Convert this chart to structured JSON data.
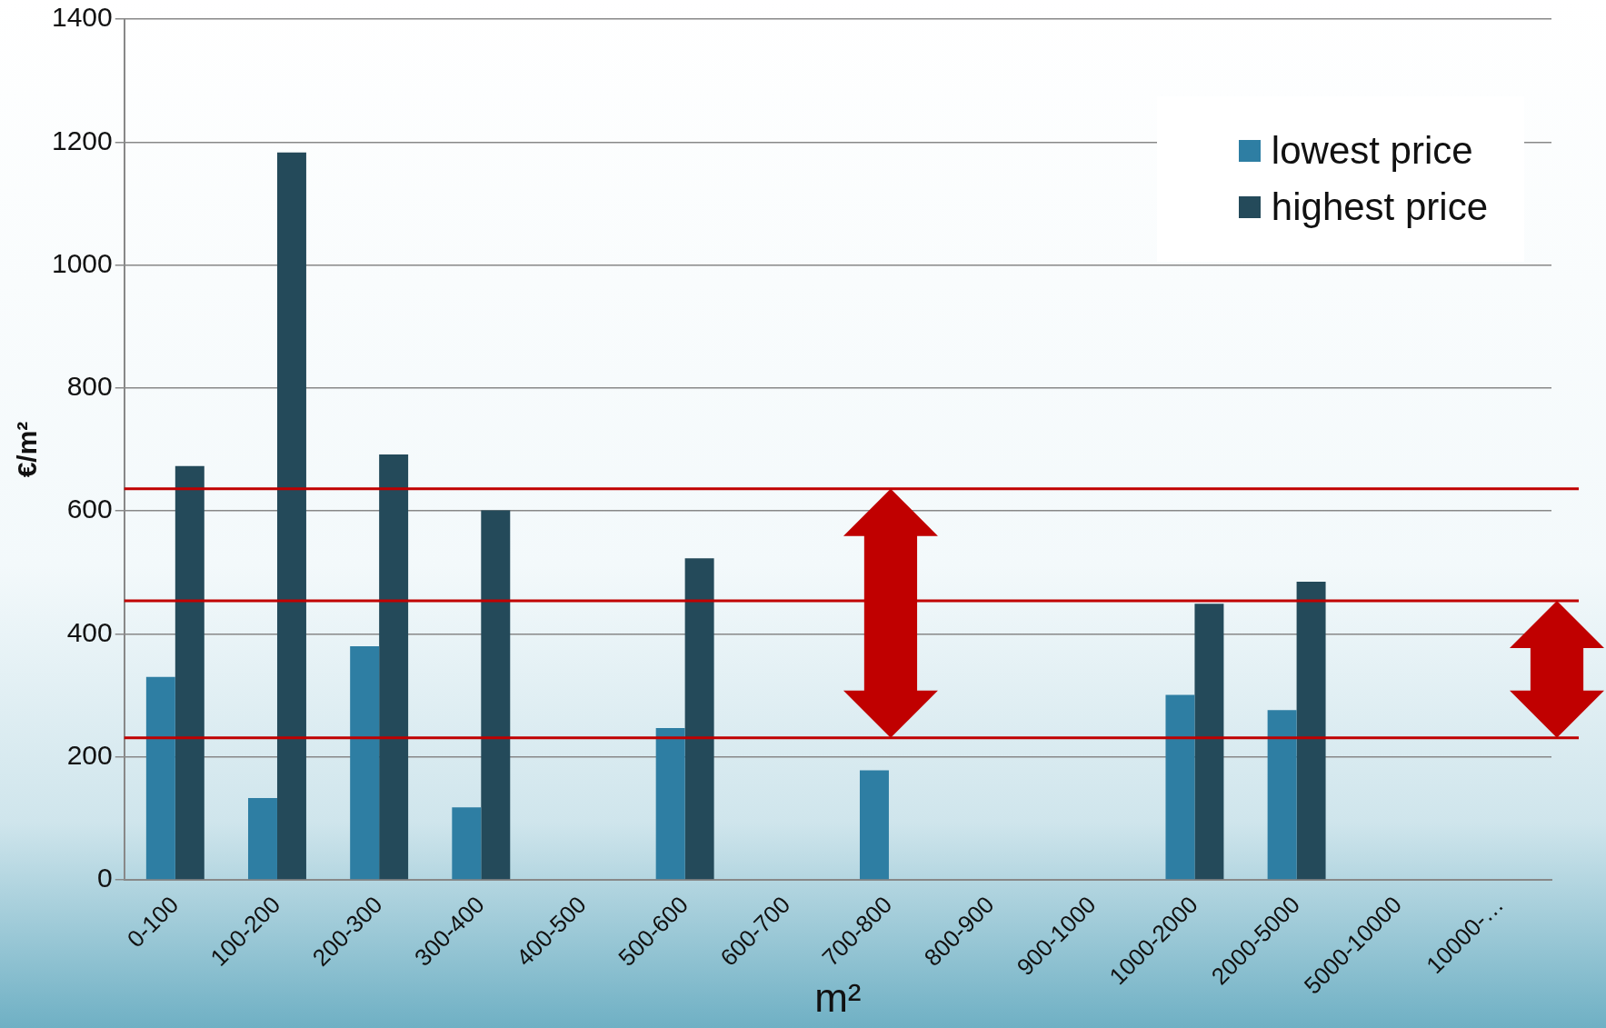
{
  "chart_data": {
    "type": "bar",
    "xlabel": "m²",
    "ylabel": "€/m²",
    "categories": [
      "0-100",
      "100-200",
      "200-300",
      "300-400",
      "400-500",
      "500-600",
      "600-700",
      "700-800",
      "800-900",
      "900-1000",
      "1000-2000",
      "2000-5000",
      "5000-10000",
      "10000-…"
    ],
    "series": [
      {
        "name": "lowest price",
        "color": "#2e7ea3",
        "values": [
          330,
          133,
          380,
          118,
          null,
          247,
          null,
          178,
          null,
          null,
          301,
          276,
          null,
          null
        ]
      },
      {
        "name": "highest price",
        "color": "#244a5a",
        "values": [
          673,
          1183,
          692,
          601,
          null,
          523,
          null,
          null,
          null,
          null,
          449,
          485,
          null,
          null
        ]
      }
    ],
    "ylim": [
      0,
      1400
    ],
    "yticks": [
      0,
      200,
      400,
      600,
      800,
      1000,
      1200,
      1400
    ],
    "grid": "y",
    "legend": "top right",
    "ref_lines": [
      {
        "axis": "y",
        "value": 636,
        "color": "#c00000"
      },
      {
        "axis": "y",
        "value": 231,
        "color": "#c00000"
      },
      {
        "axis": "y",
        "value": 454,
        "color": "#c00000"
      }
    ]
  }
}
